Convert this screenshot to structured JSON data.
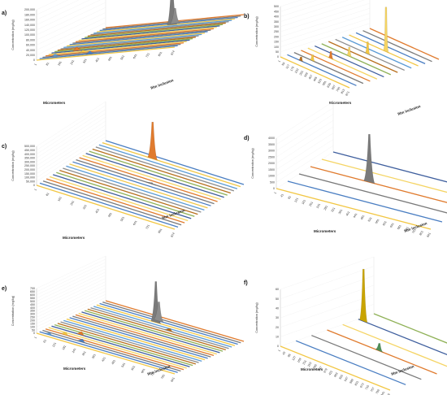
{
  "figure": {
    "background": "#ffffff",
    "strip_colors": [
      "#f2c744",
      "#4a7ec2",
      "#7a7a7a",
      "#e07b2e",
      "#f5d463",
      "#3f5f9e",
      "#8fb157",
      "#b8701f",
      "#8c8c8c",
      "#5b9bd5"
    ]
  },
  "chart_data": [
    {
      "panel": "a)",
      "type": "area",
      "projection": "3d",
      "ylabel": "Concentration (mg/kg)",
      "xlabel": "Micrometers",
      "zlabel": "film inclusion",
      "y_ticks": [
        "0",
        "20,000",
        "40,000",
        "60,000",
        "80,000",
        "100,000",
        "120,000",
        "140,000",
        "160,000",
        "180,000",
        "200,000"
      ],
      "ylim": [
        0,
        200000
      ],
      "categories": [
        "1",
        "81",
        "161",
        "241",
        "321",
        "401",
        "481",
        "561",
        "641",
        "721",
        "801",
        "874"
      ],
      "series_count": 24,
      "peaks": [
        {
          "series": 20,
          "category": 6,
          "value": 175000,
          "color": "#7a7a7a"
        },
        {
          "series": 21,
          "category": 6,
          "value": 60000,
          "color": "#8c8c8c"
        },
        {
          "series": 5,
          "category": 2,
          "value": 14000,
          "color": "#e07b2e"
        },
        {
          "series": 3,
          "category": 3,
          "value": 9000,
          "color": "#f2c744"
        },
        {
          "series": 1,
          "category": 4,
          "value": 11000,
          "color": "#4a7ec2"
        },
        {
          "series": 2,
          "category": 1,
          "value": 8000,
          "color": "#5b9bd5"
        }
      ]
    },
    {
      "panel": "b)",
      "type": "area",
      "projection": "3d",
      "ylabel": "Concentration (mg/kg)",
      "xlabel": "Micrometers",
      "zlabel": "film inclusion",
      "y_ticks": [
        "0",
        "50",
        "100",
        "150",
        "200",
        "250",
        "300",
        "350",
        "400",
        "450",
        "500"
      ],
      "ylim": [
        0,
        500
      ],
      "categories": [
        "1",
        "59",
        "117",
        "175",
        "233",
        "291",
        "349",
        "407",
        "465",
        "523",
        "581",
        "639",
        "697",
        "755",
        "813",
        "871"
      ],
      "series_count": 14,
      "peaks": [
        {
          "series": 10,
          "category": 8,
          "value": 440,
          "color": "#f5d463"
        },
        {
          "series": 8,
          "category": 7,
          "value": 120,
          "color": "#f2c744"
        },
        {
          "series": 6,
          "category": 6,
          "value": 90,
          "color": "#f5d463"
        },
        {
          "series": 4,
          "category": 5,
          "value": 70,
          "color": "#e07b2e"
        },
        {
          "series": 2,
          "category": 4,
          "value": 60,
          "color": "#f2c744"
        },
        {
          "series": 1,
          "category": 3,
          "value": 40,
          "color": "#b8701f"
        }
      ]
    },
    {
      "panel": "c)",
      "type": "area",
      "projection": "3d",
      "ylabel": "Concentration (mg/kg)",
      "xlabel": "Micrometers",
      "zlabel": "film inclusion",
      "y_ticks": [
        "0",
        "50,000",
        "100,000",
        "150,000",
        "200,000",
        "250,000",
        "300,000",
        "350,000",
        "400,000",
        "450,000",
        "500,000"
      ],
      "ylim": [
        0,
        500000
      ],
      "categories": [
        "1",
        "81",
        "161",
        "241",
        "321",
        "401",
        "481",
        "561",
        "641",
        "721",
        "801",
        "874"
      ],
      "series_count": 22,
      "peaks": [
        {
          "series": 20,
          "category": 4,
          "value": 470000,
          "color": "#e07b2e"
        },
        {
          "series": 12,
          "category": 6,
          "value": 15000,
          "color": "#7a7a7a"
        }
      ]
    },
    {
      "panel": "d)",
      "type": "area",
      "projection": "3d",
      "ylabel": "Concentration (mg/kg)",
      "xlabel": "Micrometers",
      "zlabel": "film inclusion",
      "y_ticks": [
        "0",
        "500",
        "1000",
        "1500",
        "2000",
        "2500",
        "3000",
        "3500",
        "4000"
      ],
      "ylim": [
        0,
        4000
      ],
      "categories": [
        "1",
        "41",
        "81",
        "121",
        "161",
        "201",
        "241",
        "281",
        "321",
        "361",
        "401",
        "441",
        "481",
        "521",
        "561",
        "601",
        "641",
        "681",
        "721",
        "761",
        "801",
        "841"
      ],
      "series_count": 6,
      "peaks": [
        {
          "series": 3,
          "category": 8,
          "value": 3800,
          "color": "#7a7a7a"
        }
      ]
    },
    {
      "panel": "e)",
      "type": "area",
      "projection": "3d",
      "ylabel": "Concentration (mg/kg)",
      "xlabel": "Micrometers",
      "zlabel": "film inclusion",
      "y_ticks": [
        "0",
        "50",
        "100",
        "150",
        "200",
        "250",
        "300",
        "350",
        "400",
        "450",
        "500",
        "550",
        "600",
        "650",
        "700"
      ],
      "ylim": [
        0,
        700
      ],
      "categories": [
        "1",
        "61",
        "121",
        "181",
        "241",
        "301",
        "361",
        "421",
        "481",
        "541",
        "601",
        "661",
        "721",
        "781",
        "841"
      ],
      "series_count": 24,
      "peaks": [
        {
          "series": 20,
          "category": 6,
          "value": 640,
          "color": "#7a7a7a"
        },
        {
          "series": 21,
          "category": 6,
          "value": 300,
          "color": "#8c8c8c"
        },
        {
          "series": 18,
          "category": 8,
          "value": 40,
          "color": "#b8701f"
        },
        {
          "series": 5,
          "category": 3,
          "value": 50,
          "color": "#e07b2e"
        },
        {
          "series": 3,
          "category": 2,
          "value": 40,
          "color": "#f2c744"
        },
        {
          "series": 2,
          "category": 4,
          "value": 45,
          "color": "#4a7ec2"
        },
        {
          "series": 1,
          "category": 1,
          "value": 30,
          "color": "#5b9bd5"
        }
      ]
    },
    {
      "panel": "f)",
      "type": "area",
      "projection": "3d",
      "ylabel": "Concentration (mg/kg)",
      "xlabel": "Micrometers",
      "zlabel": "film inclusion",
      "y_ticks": [
        "0",
        "10",
        "20",
        "30",
        "40",
        "50",
        "60"
      ],
      "ylim": [
        0,
        60
      ],
      "categories": [
        "1",
        "43",
        "85",
        "127",
        "169",
        "211",
        "253",
        "295",
        "337",
        "379",
        "421",
        "463",
        "505",
        "547",
        "589",
        "631",
        "673",
        "715",
        "757",
        "799",
        "841",
        "876"
      ],
      "series_count": 7,
      "peaks": [
        {
          "series": 5,
          "category": 1,
          "value": 55,
          "color": "#c9a400"
        },
        {
          "series": 3,
          "category": 10,
          "value": 8,
          "color": "#4f8f58"
        }
      ]
    }
  ]
}
